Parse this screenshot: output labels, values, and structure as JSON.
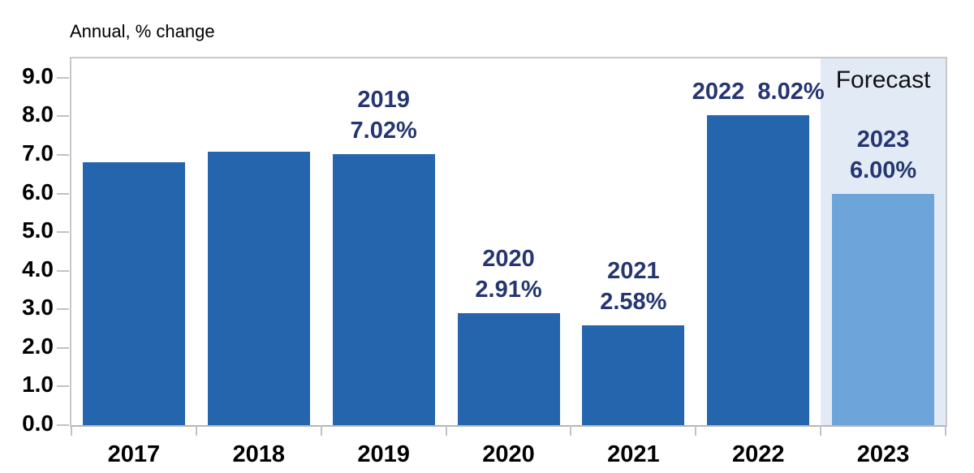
{
  "chart_data": {
    "type": "bar",
    "title": "Annual, % change",
    "categories": [
      "2017",
      "2018",
      "2019",
      "2020",
      "2021",
      "2022",
      "2023"
    ],
    "values": [
      6.81,
      7.08,
      7.02,
      2.91,
      2.58,
      8.02,
      6.0
    ],
    "ylim": [
      0,
      9.5
    ],
    "yticks": [
      9.0,
      8.0,
      7.0,
      6.0,
      5.0,
      4.0,
      3.0,
      2.0,
      1.0,
      0.0
    ],
    "ytick_labels": [
      "9.0",
      "8.0",
      "7.0",
      "6.0",
      "5.0",
      "4.0",
      "3.0",
      "2.0",
      "1.0",
      "0.0"
    ],
    "grid": "off",
    "legend": "none",
    "annotations": [
      {
        "category_index": 2,
        "lines": [
          "2019",
          "7.02%"
        ]
      },
      {
        "category_index": 3,
        "lines": [
          "2020",
          "2.91%"
        ]
      },
      {
        "category_index": 4,
        "lines": [
          "2021",
          "2.58%"
        ]
      },
      {
        "category_index": 5,
        "lines": [
          "2022  8.02%"
        ]
      },
      {
        "category_index": 6,
        "lines": [
          "2023",
          "6.00%"
        ]
      }
    ],
    "forecast": {
      "label": "Forecast",
      "category": "2023",
      "category_index": 6,
      "value": 6.0
    },
    "colors": {
      "bar": "#2565AE",
      "forecast_bar": "#6DA4D9",
      "forecast_band": "#E2EBF5",
      "data_label": "#253671",
      "axis_text": "#000000",
      "border": "#C8C8C8"
    }
  }
}
